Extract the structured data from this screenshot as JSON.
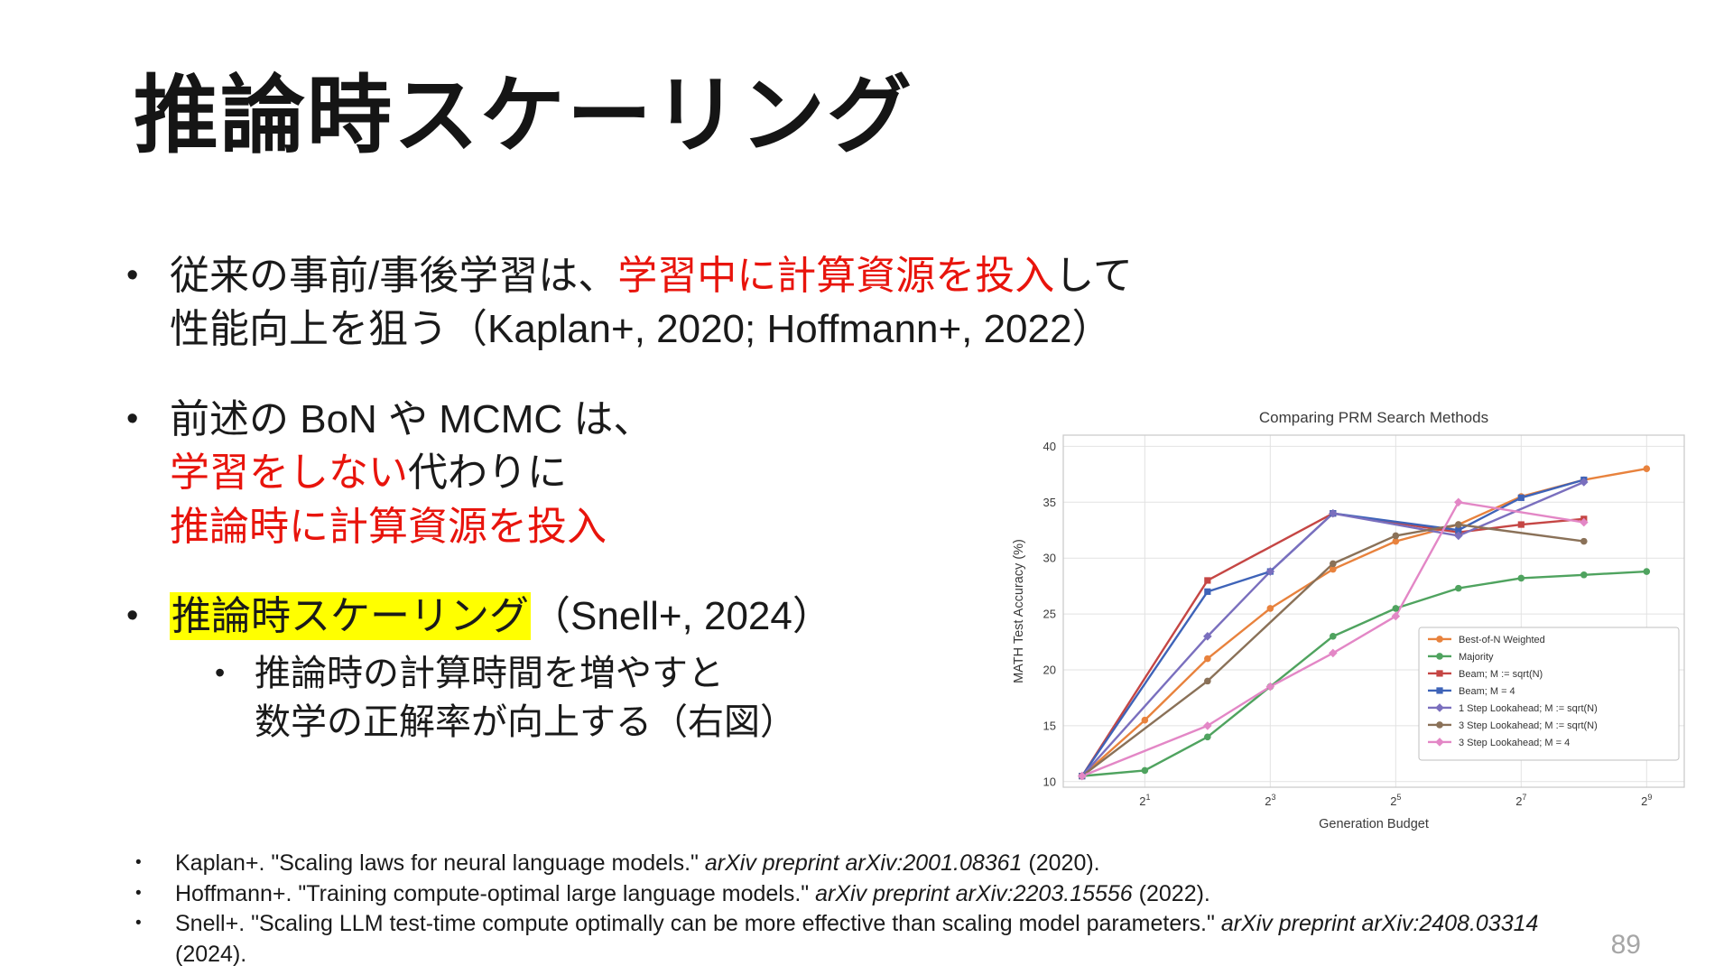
{
  "colors": {
    "red_text": "#e8140c",
    "highlight": "#ffff00",
    "page_number_gray": "#a6a6a6"
  },
  "ui": {
    "bullet": "•"
  },
  "slide": {
    "title": "推論時スケーリング",
    "page_number": "89"
  },
  "bullets": {
    "b1": {
      "s1": "従来の事前/事後学習は、",
      "s2_red": "学習中に計算資源を投入",
      "s3": "して",
      "line2": "性能向上を狙う（Kaplan+, 2020; Hoffmann+, 2022）"
    },
    "b2": {
      "line1": "前述の BoN や MCMC は、",
      "s1_red": "学習をしない",
      "s2": "代わりに",
      "s3_red": "推論時に計算資源を投入"
    },
    "b3": {
      "s1_highlight": "推論時スケーリング",
      "s2": "（Snell+, 2024）",
      "sub_line1": "推論時の計算時間を増やすと",
      "sub_line2": "数学の正解率が向上する（右図）"
    }
  },
  "references": [
    {
      "pre": "Kaplan+. \"Scaling laws for neural language models.\" ",
      "italic": "arXiv preprint arXiv:2001.08361",
      "post": " (2020)."
    },
    {
      "pre": "Hoffmann+. \"Training compute-optimal large language models.\" ",
      "italic": "arXiv preprint arXiv:2203.15556",
      "post": " (2022)."
    },
    {
      "pre": "Snell+. \"Scaling LLM test-time compute optimally can be more effective than scaling model parameters.\" ",
      "italic": "arXiv preprint arXiv:2408.03314",
      "post": " (2024)."
    }
  ],
  "chart_data": {
    "type": "line",
    "title": "Comparing PRM Search Methods",
    "xlabel": "Generation Budget",
    "ylabel": "MATH Test Accuracy (%)",
    "x_scale": "log2",
    "x_tick_exponents": [
      1,
      3,
      5,
      7,
      9
    ],
    "x_range_exponents": [
      -0.3,
      9.6
    ],
    "ylim": [
      9.5,
      41
    ],
    "y_ticks": [
      10,
      15,
      20,
      25,
      30,
      35,
      40
    ],
    "grid": true,
    "legend_position": "lower right",
    "series": [
      {
        "name": "Best-of-N Weighted",
        "color": "#e8823d",
        "marker": "circle",
        "x_exp": [
          0,
          1,
          2,
          3,
          4,
          5,
          6,
          7,
          8,
          9
        ],
        "y": [
          10.5,
          15.5,
          21.0,
          25.5,
          29.0,
          31.5,
          33.0,
          35.5,
          37.0,
          38.0
        ]
      },
      {
        "name": "Majority",
        "color": "#4fa35f",
        "marker": "circle",
        "x_exp": [
          0,
          1,
          2,
          3,
          4,
          5,
          6,
          7,
          8,
          9
        ],
        "y": [
          10.5,
          11.0,
          14.0,
          18.5,
          23.0,
          25.5,
          27.3,
          28.2,
          28.5,
          28.8
        ]
      },
      {
        "name": "Beam; M := sqrt(N)",
        "color": "#c54644",
        "marker": "square",
        "x_exp": [
          0,
          2,
          4,
          6,
          7,
          8
        ],
        "y": [
          10.5,
          28.0,
          34.0,
          32.3,
          33.0,
          33.5
        ]
      },
      {
        "name": "Beam; M = 4",
        "color": "#3e63b8",
        "marker": "square",
        "x_exp": [
          0,
          2,
          3,
          4,
          6,
          7,
          8
        ],
        "y": [
          10.5,
          27.0,
          28.8,
          34.0,
          32.5,
          35.4,
          37.0
        ]
      },
      {
        "name": "1 Step Lookahead; M := sqrt(N)",
        "color": "#7a6fbe",
        "marker": "diamond",
        "x_exp": [
          0,
          2,
          3,
          4,
          6,
          8
        ],
        "y": [
          10.5,
          23.0,
          28.8,
          34.0,
          32.0,
          36.8
        ]
      },
      {
        "name": "3 Step Lookahead; M := sqrt(N)",
        "color": "#8a7158",
        "marker": "circle",
        "x_exp": [
          0,
          2,
          4,
          5,
          6,
          8
        ],
        "y": [
          10.5,
          19.0,
          29.5,
          32.0,
          33.0,
          31.5
        ]
      },
      {
        "name": "3 Step Lookahead; M = 4",
        "color": "#e387c6",
        "marker": "diamond",
        "x_exp": [
          0,
          2,
          3,
          4,
          5,
          6,
          8
        ],
        "y": [
          10.5,
          15.0,
          18.5,
          21.5,
          24.8,
          35.0,
          33.2
        ]
      }
    ]
  }
}
